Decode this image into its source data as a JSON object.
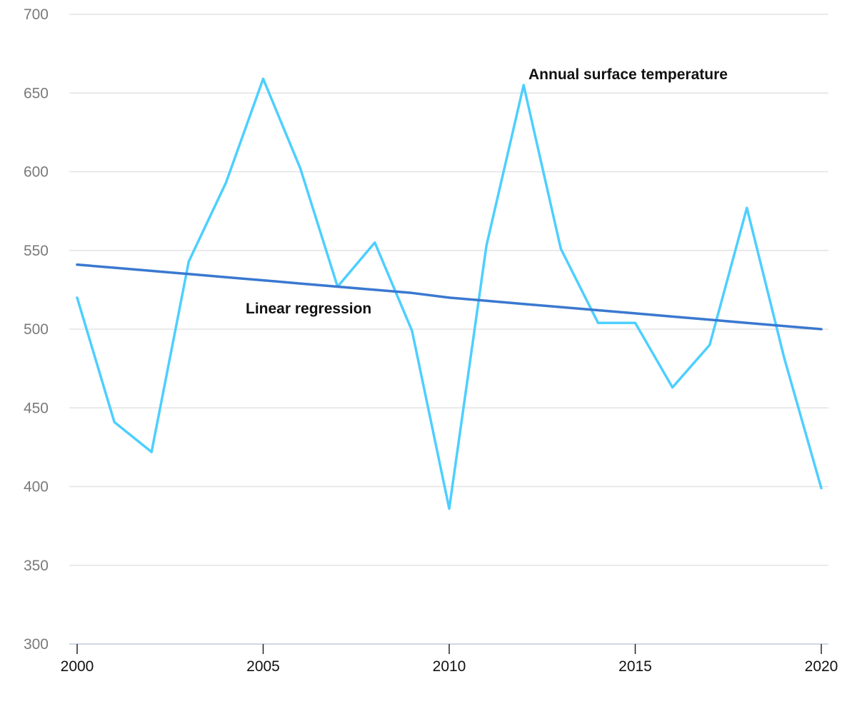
{
  "chart_data": {
    "type": "line",
    "title": "",
    "xlabel": "",
    "ylabel": "",
    "xlim": [
      2000,
      2020
    ],
    "ylim": [
      300,
      700
    ],
    "y_ticks": [
      300,
      350,
      400,
      450,
      500,
      550,
      600,
      650,
      700
    ],
    "x_ticks": [
      2000,
      2005,
      2010,
      2015,
      2020
    ],
    "grid": "horizontal",
    "x": [
      2000,
      2001,
      2002,
      2003,
      2004,
      2005,
      2006,
      2007,
      2008,
      2009,
      2010,
      2011,
      2012,
      2013,
      2014,
      2015,
      2016,
      2017,
      2018,
      2019,
      2020
    ],
    "series": [
      {
        "name": "Annual surface temperature",
        "color": "#4dcfff",
        "values": [
          520,
          441,
          422,
          543,
          593,
          659,
          602,
          527,
          555,
          499,
          386,
          553,
          655,
          551,
          504,
          504,
          463,
          490,
          577,
          482,
          399
        ]
      },
      {
        "name": "Linear regression",
        "color": "#3a78d0",
        "values": [
          541,
          539,
          537,
          535,
          533,
          531,
          529,
          527,
          525,
          523,
          520,
          518,
          516,
          514,
          512,
          510,
          508,
          506,
          504,
          502,
          500
        ]
      }
    ]
  }
}
